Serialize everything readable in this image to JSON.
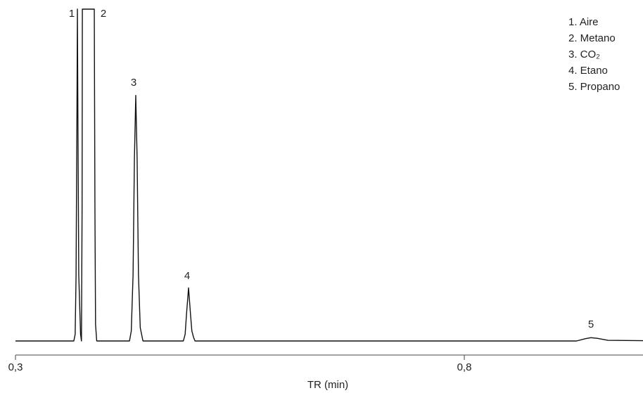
{
  "chart_data": {
    "type": "line",
    "x": [
      0.3,
      0.365,
      0.3665,
      0.3675,
      0.3685,
      0.369,
      0.3695,
      0.3705,
      0.3725,
      0.3735,
      0.3742,
      0.3745,
      0.3878,
      0.3885,
      0.3892,
      0.3905,
      0.427,
      0.429,
      0.431,
      0.4325,
      0.434,
      0.4355,
      0.437,
      0.439,
      0.442,
      0.487,
      0.489,
      0.4905,
      0.4928,
      0.495,
      0.4965,
      0.4985,
      0.5,
      0.925,
      0.935,
      0.941,
      0.948,
      0.96,
      1.0
    ],
    "series": [
      {
        "color": "#111111",
        "values": [
          0,
          0,
          2,
          20,
          70,
          100,
          70,
          20,
          2,
          0,
          40,
          100,
          100,
          40,
          5,
          0,
          0,
          3,
          20,
          55,
          74,
          55,
          20,
          4,
          0,
          0,
          2,
          8,
          16,
          8,
          3,
          1,
          0,
          0,
          0.7,
          1,
          0.8,
          0.2,
          0.1
        ]
      }
    ],
    "xlim": [
      0.3,
      1.0
    ],
    "ylim": [
      0,
      100
    ],
    "xticks": [
      {
        "value": 0.3,
        "label": "0,3"
      },
      {
        "value": 0.8,
        "label": "0,8"
      }
    ],
    "xlabel": "TR (min)",
    "peak_labels": [
      "1",
      "2",
      "3",
      "4",
      "5"
    ],
    "legend": [
      "1. Aire",
      "2. Metano",
      "3. CO₂",
      "4. Etano",
      "5. Propano"
    ]
  }
}
